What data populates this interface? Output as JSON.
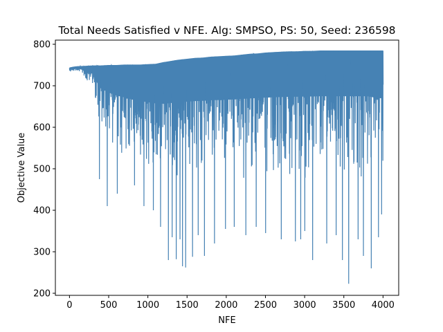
{
  "chart_data": {
    "type": "line",
    "title": "Total Needs Satisfied v NFE. Alg: SMPSO, PS: 50, Seed: 236598",
    "xlabel": "NFE",
    "ylabel": "Objective Value",
    "xlim": [
      -180,
      4200
    ],
    "ylim": [
      195,
      810
    ],
    "xticks": [
      0,
      500,
      1000,
      1500,
      2000,
      2500,
      3000,
      3500,
      4000
    ],
    "yticks": [
      200,
      300,
      400,
      500,
      600,
      700,
      800
    ],
    "grid": false,
    "legend": "none",
    "series": [
      {
        "name": "Objective Value",
        "color": "#4682b4",
        "upper_envelope": {
          "x": [
            0,
            50,
            100,
            200,
            300,
            400,
            500,
            600,
            700,
            800,
            900,
            1000,
            1100,
            1200,
            1300,
            1400,
            1500,
            1600,
            1700,
            1800,
            1900,
            2000,
            2100,
            2200,
            2300,
            2400,
            2500,
            2600,
            2700,
            2800,
            2900,
            3000,
            3100,
            3200,
            3300,
            3400,
            3500,
            3600,
            3700,
            3800,
            3900,
            4000
          ],
          "y": [
            744,
            746,
            747,
            748,
            749,
            749,
            750,
            750,
            751,
            751,
            751,
            752,
            753,
            757,
            760,
            763,
            765,
            767,
            768,
            770,
            771,
            772,
            773,
            775,
            777,
            778,
            780,
            781,
            782,
            783,
            783,
            784,
            784,
            785,
            785,
            785,
            785,
            785,
            785,
            785,
            785,
            785
          ]
        },
        "lower_envelope": {
          "x": [
            0,
            100,
            200,
            300,
            350,
            400,
            500,
            600,
            700,
            800,
            900,
            1000,
            1100,
            1200,
            1300,
            1400,
            1500,
            1600,
            1700,
            1800,
            1900,
            2000,
            2100,
            2200,
            2300,
            2400,
            2500,
            2600,
            2700,
            2800,
            2900,
            3000,
            3100,
            3200,
            3300,
            3400,
            3500,
            3600,
            3700,
            3800,
            3900,
            4000
          ],
          "y": [
            738,
            732,
            715,
            690,
            630,
            590,
            560,
            540,
            525,
            510,
            500,
            490,
            480,
            470,
            470,
            470,
            470,
            470,
            470,
            470,
            470,
            470,
            470,
            470,
            470,
            470,
            470,
            470,
            470,
            470,
            470,
            470,
            470,
            470,
            470,
            470,
            470,
            470,
            470,
            470,
            460,
            455
          ]
        },
        "notable_minima": [
          {
            "x": 380,
            "y": 475
          },
          {
            "x": 480,
            "y": 410
          },
          {
            "x": 610,
            "y": 440
          },
          {
            "x": 830,
            "y": 460
          },
          {
            "x": 950,
            "y": 410
          },
          {
            "x": 1070,
            "y": 400
          },
          {
            "x": 1160,
            "y": 360
          },
          {
            "x": 1260,
            "y": 280
          },
          {
            "x": 1310,
            "y": 335
          },
          {
            "x": 1360,
            "y": 282
          },
          {
            "x": 1410,
            "y": 330
          },
          {
            "x": 1440,
            "y": 265
          },
          {
            "x": 1480,
            "y": 262
          },
          {
            "x": 1570,
            "y": 288
          },
          {
            "x": 1640,
            "y": 340
          },
          {
            "x": 1720,
            "y": 290
          },
          {
            "x": 1850,
            "y": 320
          },
          {
            "x": 1990,
            "y": 355
          },
          {
            "x": 2100,
            "y": 360
          },
          {
            "x": 2250,
            "y": 340
          },
          {
            "x": 2380,
            "y": 360
          },
          {
            "x": 2500,
            "y": 345
          },
          {
            "x": 2700,
            "y": 330
          },
          {
            "x": 2880,
            "y": 325
          },
          {
            "x": 2950,
            "y": 330
          },
          {
            "x": 3000,
            "y": 350
          },
          {
            "x": 3100,
            "y": 280
          },
          {
            "x": 3280,
            "y": 320
          },
          {
            "x": 3400,
            "y": 340
          },
          {
            "x": 3480,
            "y": 280
          },
          {
            "x": 3560,
            "y": 223
          },
          {
            "x": 3680,
            "y": 330
          },
          {
            "x": 3750,
            "y": 290
          },
          {
            "x": 3850,
            "y": 260
          },
          {
            "x": 3940,
            "y": 335
          },
          {
            "x": 3980,
            "y": 390
          }
        ]
      }
    ]
  }
}
